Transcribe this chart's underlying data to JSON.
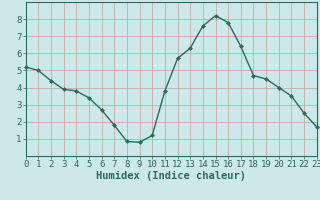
{
  "x": [
    0,
    1,
    2,
    3,
    4,
    5,
    6,
    7,
    8,
    9,
    10,
    11,
    12,
    13,
    14,
    15,
    16,
    17,
    18,
    19,
    20,
    21,
    22,
    23
  ],
  "y": [
    5.2,
    5.0,
    4.4,
    3.9,
    3.8,
    3.4,
    2.7,
    1.8,
    0.85,
    0.8,
    1.2,
    3.8,
    5.7,
    6.3,
    7.6,
    8.2,
    7.8,
    6.4,
    4.7,
    4.5,
    4.0,
    3.5,
    2.5,
    1.7
  ],
  "line_color": "#2e6b5e",
  "marker": "D",
  "marker_size": 2.0,
  "bg_color": "#cce8e8",
  "plot_bg_color": "#cce8e8",
  "grid_color": "#c4a0a0",
  "xlabel": "Humidex (Indice chaleur)",
  "xlim": [
    0,
    23
  ],
  "ylim": [
    0,
    9
  ],
  "yticks": [
    1,
    2,
    3,
    4,
    5,
    6,
    7,
    8
  ],
  "xticks": [
    0,
    1,
    2,
    3,
    4,
    5,
    6,
    7,
    8,
    9,
    10,
    11,
    12,
    13,
    14,
    15,
    16,
    17,
    18,
    19,
    20,
    21,
    22,
    23
  ],
  "tick_color": "#2e6b5e",
  "label_color": "#2e6b5e",
  "axis_color": "#2e6b5e",
  "xlabel_fontsize": 7.5,
  "tick_fontsize": 6.5,
  "linewidth": 1.0
}
